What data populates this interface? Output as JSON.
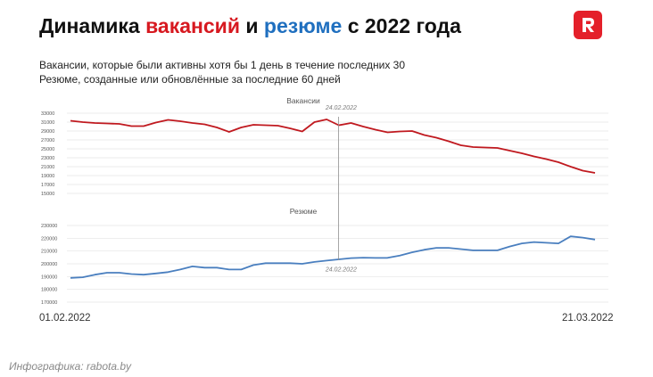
{
  "title": {
    "part1": "Динамика ",
    "part2": "вакансий",
    "part3": " и ",
    "part4": "резюме",
    "part5": " с 2022 года"
  },
  "logo": {
    "letter": "R",
    "color": "#e4202a"
  },
  "subtitle": {
    "line1": "Вакансии, которые были активны хотя бы 1 день в течение последних 30",
    "line2": "Резюме, созданные или обновлённые за последние 60 дней"
  },
  "credit": "Инфографика: rabota.by",
  "colors": {
    "vacancies": "#c0191f",
    "resumes": "#4a7fbf",
    "accent_red": "#d71920",
    "accent_blue": "#1f6fbf"
  },
  "chart_data": [
    {
      "type": "line",
      "title": "Вакансии",
      "x_start": "01.02.2022",
      "x_end": "21.03.2022",
      "ylim": [
        15000,
        33000
      ],
      "yticks": [
        15000,
        17000,
        19000,
        21000,
        23000,
        25000,
        27000,
        29000,
        31000,
        33000
      ],
      "tick_labels": [
        "15000",
        "17000",
        "19000",
        "21000",
        "23000",
        "25000",
        "27000",
        "29000",
        "31000",
        "33000"
      ],
      "grid": true,
      "annotation": "24.02.2022",
      "series": [
        {
          "values": [
            31300,
            31000,
            30800,
            30700,
            30600,
            30100,
            30100,
            30900,
            31500,
            31200,
            30800,
            30500,
            29800,
            28800,
            29800,
            30400,
            30300,
            30200,
            29600,
            28900,
            31000,
            31600,
            30300,
            30800,
            30000,
            29300,
            28700,
            28900,
            29000,
            28100,
            27500,
            26700,
            25800,
            25400,
            25300,
            25200,
            24600,
            24000,
            23300,
            22700,
            22000,
            21000,
            20100,
            19600
          ]
        }
      ]
    },
    {
      "type": "line",
      "title": "Резюме",
      "x_start": "01.02.2022",
      "x_end": "21.03.2022",
      "ylim": [
        170000,
        230000
      ],
      "yticks": [
        170000,
        180000,
        190000,
        200000,
        210000,
        220000,
        230000
      ],
      "tick_labels": [
        "170000",
        "180000",
        "190000",
        "200000",
        "210000",
        "220000",
        "230000"
      ],
      "grid": true,
      "annotation": "24.02.2022",
      "series": [
        {
          "values": [
            189000,
            189500,
            191500,
            193000,
            193000,
            192000,
            191500,
            192500,
            193500,
            195500,
            198000,
            197000,
            197000,
            195500,
            195500,
            199000,
            200500,
            200500,
            200500,
            200000,
            201500,
            202500,
            203500,
            204500,
            204800,
            204600,
            204700,
            206500,
            209000,
            211000,
            212500,
            212500,
            211500,
            210500,
            210500,
            210500,
            213500,
            216000,
            217000,
            216500,
            216000,
            221500,
            220500,
            219000
          ]
        }
      ]
    }
  ]
}
